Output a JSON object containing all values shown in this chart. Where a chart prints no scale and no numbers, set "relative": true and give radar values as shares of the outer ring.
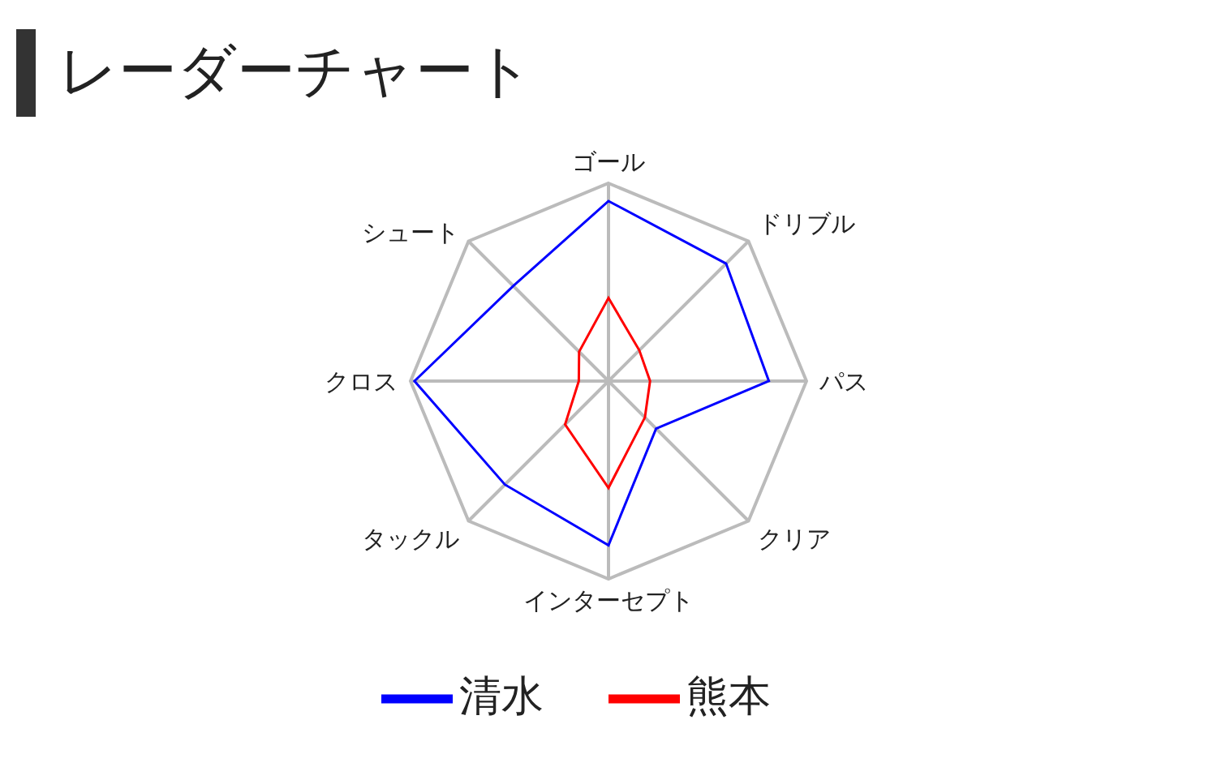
{
  "chart_data": {
    "type": "radar",
    "title": "レーダーチャート",
    "categories": [
      "ゴール",
      "ドリブル",
      "パス",
      "クリア",
      "インターセプト",
      "タックル",
      "クロス",
      "シュート"
    ],
    "relative": true,
    "grid": true,
    "legend": "bottom",
    "series": [
      {
        "name": "清水",
        "color": "#0000ff",
        "values": [
          0.91,
          0.84,
          0.81,
          0.34,
          0.83,
          0.74,
          0.98,
          0.68
        ]
      },
      {
        "name": "熊本",
        "color": "#ff0000",
        "values": [
          0.42,
          0.22,
          0.21,
          0.26,
          0.54,
          0.31,
          0.15,
          0.21
        ]
      }
    ]
  }
}
